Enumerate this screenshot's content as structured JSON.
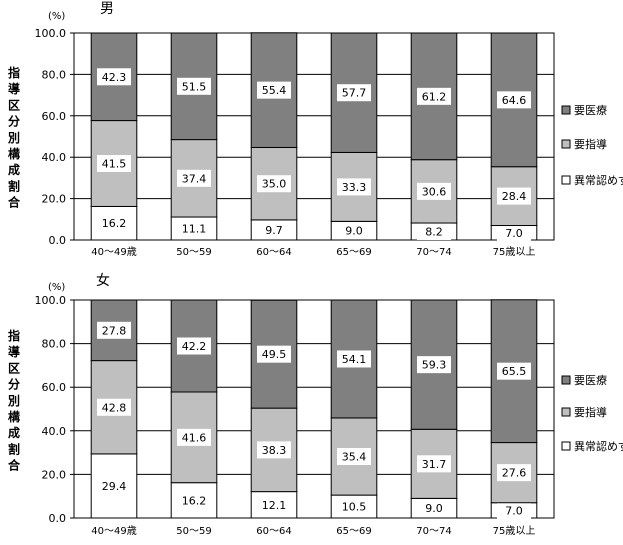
{
  "chart_data": [
    {
      "type": "bar",
      "stacked": true,
      "title": "男",
      "unit": "(%)",
      "ylabel": "指導区分別構成割合",
      "ylim": [
        0,
        100
      ],
      "yticks": [
        "0.0",
        "20.0",
        "40.0",
        "60.0",
        "80.0",
        "100.0"
      ],
      "grid": true,
      "legend_position": "right",
      "categories": [
        "40～49歳",
        "50～59",
        "60～64",
        "65～69",
        "70～74",
        "75歳以上"
      ],
      "series": [
        {
          "name": "異常認めず",
          "color": "#ffffff",
          "values": [
            16.2,
            11.1,
            9.7,
            9.0,
            8.2,
            7.0
          ]
        },
        {
          "name": "要指導",
          "color": "#bfbfbf",
          "values": [
            41.5,
            37.4,
            35.0,
            33.3,
            30.6,
            28.4
          ]
        },
        {
          "name": "要医療",
          "color": "#808080",
          "values": [
            42.3,
            51.5,
            55.4,
            57.7,
            61.2,
            64.6
          ]
        }
      ]
    },
    {
      "type": "bar",
      "stacked": true,
      "title": "女",
      "unit": "(%)",
      "ylabel": "指導区分別構成割合",
      "ylim": [
        0,
        100
      ],
      "yticks": [
        "0.0",
        "20.0",
        "40.0",
        "60.0",
        "80.0",
        "100.0"
      ],
      "grid": true,
      "legend_position": "right",
      "categories": [
        "40～49歳",
        "50～59",
        "60～64",
        "65～69",
        "70～74",
        "75歳以上"
      ],
      "series": [
        {
          "name": "異常認めず",
          "color": "#ffffff",
          "values": [
            29.4,
            16.2,
            12.1,
            10.5,
            9.0,
            7.0
          ]
        },
        {
          "name": "要指導",
          "color": "#bfbfbf",
          "values": [
            42.8,
            41.6,
            38.3,
            35.4,
            31.7,
            27.6
          ]
        },
        {
          "name": "要医療",
          "color": "#808080",
          "values": [
            27.8,
            42.2,
            49.5,
            54.1,
            59.3,
            65.5
          ]
        }
      ]
    }
  ]
}
